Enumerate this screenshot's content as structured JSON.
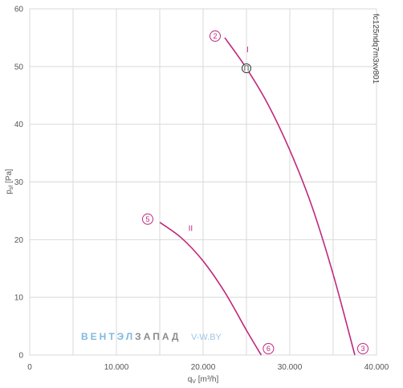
{
  "chart_data": {
    "type": "line",
    "code": "fc125ndq7m3xv801",
    "xlabel_main": "q",
    "xlabel_sub": "V",
    "xlabel_unit": " [m³/h]",
    "ylabel_main": "p",
    "ylabel_sub": "sf",
    "ylabel_unit": " [Pa]",
    "xlim": [
      0,
      40000
    ],
    "ylim": [
      0,
      60
    ],
    "x_ticks": [
      0,
      10000,
      20000,
      30000,
      40000
    ],
    "x_tick_labels": [
      "0",
      "10.000",
      "20.000",
      "30.000",
      "40.000"
    ],
    "y_ticks": [
      0,
      10,
      20,
      30,
      40,
      50,
      60
    ],
    "y_tick_labels": [
      "0",
      "10",
      "20",
      "30",
      "40",
      "50",
      "60"
    ],
    "x_grid_step": 5000,
    "y_grid_step": 10,
    "grid": true,
    "series": [
      {
        "name": "I",
        "color": "#c0287e",
        "x": [
          22500,
          25000,
          27500,
          30000,
          32500,
          35000,
          37500
        ],
        "y": [
          55,
          49.7,
          43.4,
          35.5,
          26.0,
          14.0,
          0
        ]
      },
      {
        "name": "II",
        "color": "#c0287e",
        "x": [
          15000,
          17500,
          20000,
          22500,
          25000,
          26700
        ],
        "y": [
          23,
          20.3,
          16.3,
          10.9,
          4.3,
          0
        ]
      }
    ],
    "markers": [
      {
        "label": "2",
        "x": 22500,
        "y": 55
      },
      {
        "label": "3",
        "x": 37500,
        "y": 0
      },
      {
        "label": "5",
        "x": 15000,
        "y": 23
      },
      {
        "label": "6",
        "x": 26700,
        "y": 0
      }
    ],
    "operating_point": {
      "label": "П",
      "x": 25000,
      "y": 49.7
    },
    "curve_labels": [
      {
        "text": "I",
        "x": 25000,
        "y": 52.5
      },
      {
        "text": "II",
        "x": 18300,
        "y": 21.5
      }
    ]
  },
  "watermark": {
    "part1": "ВЕНТЭЛ",
    "part2": "ЗАПАД",
    "site": "V-W.BY"
  }
}
